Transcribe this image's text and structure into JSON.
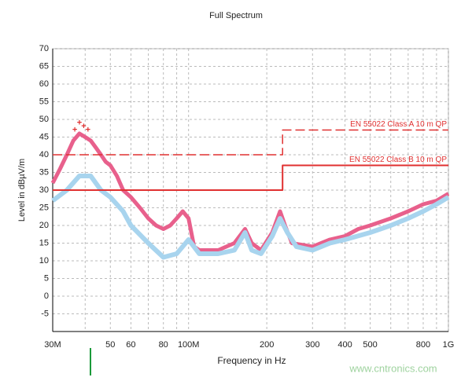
{
  "chart_data": {
    "type": "line",
    "title": "Full Spectrum",
    "x_label": "Frequency in Hz",
    "y_label": "Level in dBµV/m",
    "xscale": "log",
    "xlim": [
      30000000,
      1000000000
    ],
    "ylim": [
      -10,
      70
    ],
    "xticks": [
      {
        "value": 30000000,
        "label": "30M"
      },
      {
        "value": 50000000,
        "label": "50"
      },
      {
        "value": 60000000,
        "label": "60"
      },
      {
        "value": 80000000,
        "label": "80"
      },
      {
        "value": 100000000,
        "label": "100M"
      },
      {
        "value": 200000000,
        "label": "200"
      },
      {
        "value": 300000000,
        "label": "300"
      },
      {
        "value": 400000000,
        "label": "400"
      },
      {
        "value": 500000000,
        "label": "500"
      },
      {
        "value": 800000000,
        "label": "800"
      },
      {
        "value": 1000000000,
        "label": "1G"
      }
    ],
    "x_minor_ticks": [
      40000000,
      70000000,
      90000000,
      600000000,
      700000000,
      900000000
    ],
    "yticks": [
      -5,
      0,
      5,
      10,
      15,
      20,
      25,
      30,
      35,
      40,
      45,
      50,
      55,
      60,
      65,
      70
    ],
    "grid": true,
    "series": [
      {
        "color": "#e8608c",
        "width": 5,
        "x": [
          30000000,
          32000000,
          34000000,
          36000000,
          38000000,
          40000000,
          42000000,
          44000000,
          46000000,
          48000000,
          50000000,
          53000000,
          56000000,
          60000000,
          65000000,
          70000000,
          75000000,
          80000000,
          85000000,
          90000000,
          95000000,
          100000000,
          105000000,
          110000000,
          130000000,
          150000000,
          165000000,
          175000000,
          190000000,
          210000000,
          225000000,
          235000000,
          250000000,
          300000000,
          350000000,
          400000000,
          450000000,
          500000000,
          600000000,
          700000000,
          800000000,
          900000000,
          1000000000
        ],
        "values": [
          32,
          36,
          40,
          44,
          46,
          45,
          44,
          42,
          40,
          38,
          37,
          34,
          30,
          28,
          25,
          22,
          20,
          19,
          20,
          22,
          24,
          22,
          14,
          13,
          13,
          15,
          19,
          15,
          13,
          18,
          24,
          20,
          15,
          14,
          16,
          17,
          19,
          20,
          22,
          24,
          26,
          27,
          29
        ]
      },
      {
        "color": "#a8d4ee",
        "width": 6,
        "x": [
          30000000,
          34000000,
          38000000,
          42000000,
          46000000,
          50000000,
          56000000,
          60000000,
          70000000,
          80000000,
          90000000,
          100000000,
          110000000,
          130000000,
          150000000,
          165000000,
          175000000,
          190000000,
          210000000,
          225000000,
          240000000,
          260000000,
          300000000,
          350000000,
          400000000,
          500000000,
          600000000,
          700000000,
          800000000,
          900000000,
          1000000000
        ],
        "values": [
          27,
          30,
          34,
          34,
          30,
          28,
          24,
          20,
          15,
          11,
          12,
          16,
          12,
          12,
          13,
          18,
          13,
          12,
          17,
          22,
          18,
          14,
          13,
          15,
          16,
          18,
          20,
          22,
          24,
          26,
          28
        ]
      },
      {
        "name": "EN 55022 Class A 10 m QP",
        "color": "#e03030",
        "dash": true,
        "width": 1.5,
        "x": [
          30000000,
          230000000,
          230000000,
          1000000000
        ],
        "values": [
          40,
          40,
          47,
          47
        ]
      },
      {
        "name": "EN 55022 Class B 10 m QP",
        "color": "#e03030",
        "dash": false,
        "width": 2,
        "x": [
          30000000,
          230000000,
          230000000,
          1000000000
        ],
        "values": [
          30,
          30,
          37,
          37
        ]
      }
    ],
    "peaks": {
      "color": "#e03030",
      "x": [
        36500000,
        38000000,
        39500000,
        41000000
      ],
      "values": [
        47,
        49,
        48,
        47
      ]
    },
    "watermark": "www.cntronics.com"
  }
}
